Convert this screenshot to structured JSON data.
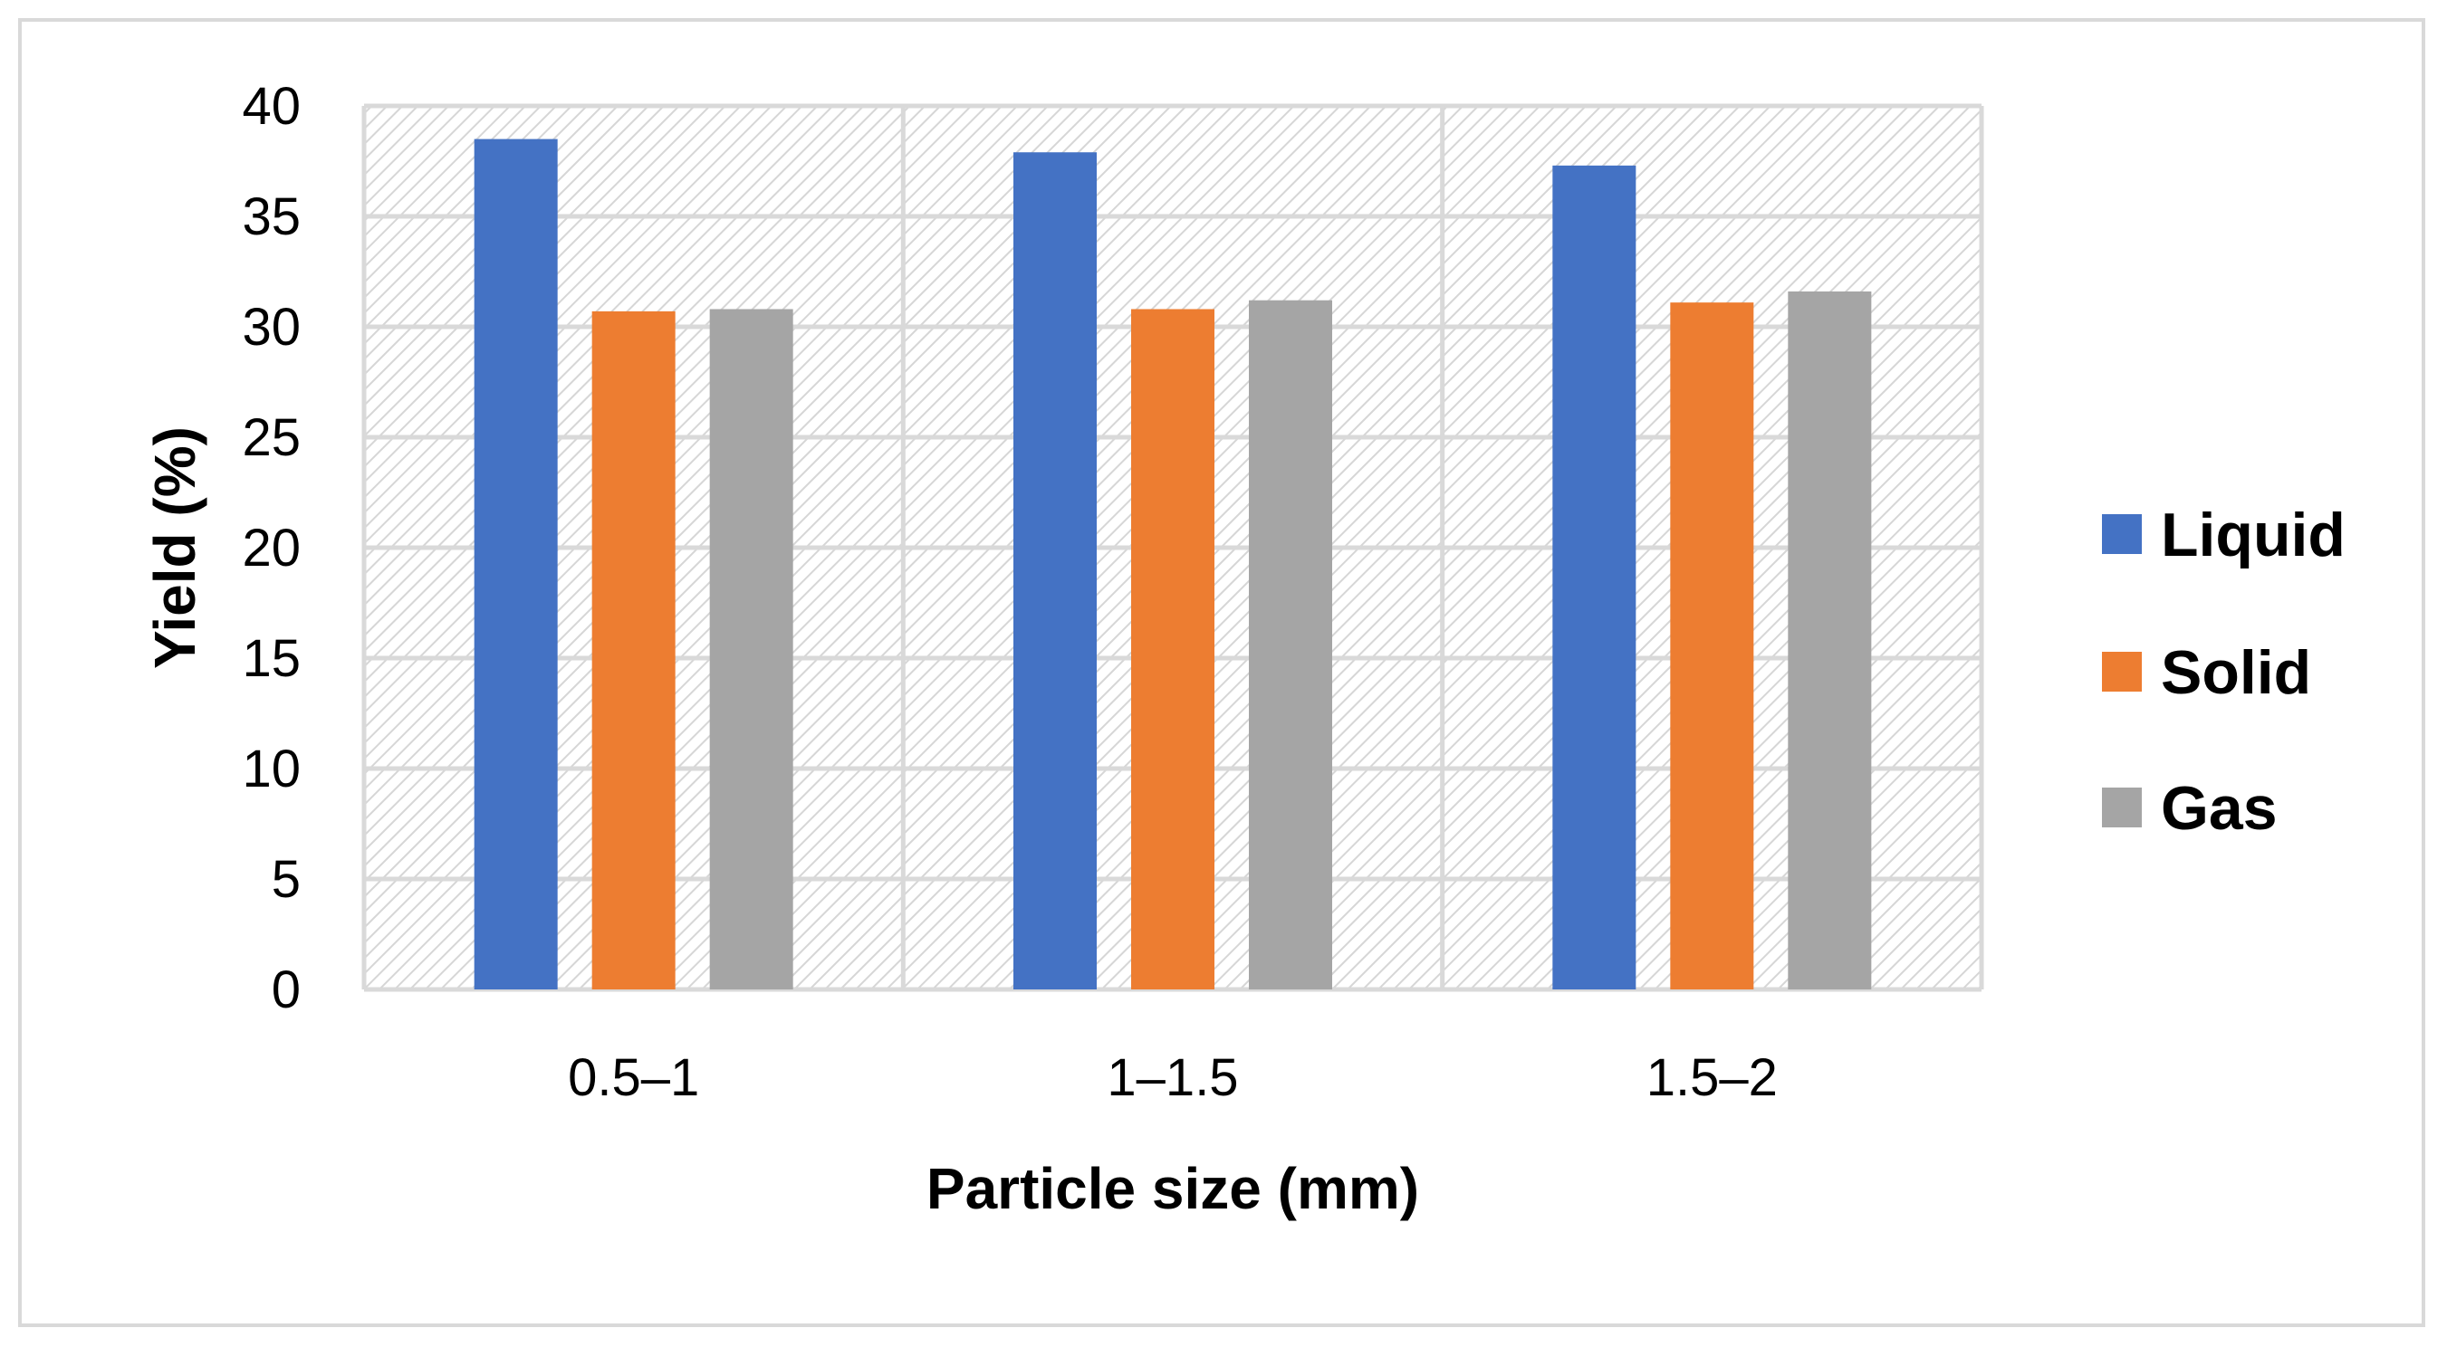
{
  "chart_data": {
    "type": "bar",
    "title": "",
    "xlabel": "Particle size (mm)",
    "ylabel": "Yield (%)",
    "categories": [
      "0.5–1",
      "1–1.5",
      "1.5–2"
    ],
    "series": [
      {
        "name": "Liquid",
        "values": [
          38.5,
          37.9,
          37.3
        ],
        "color": "#4472c4"
      },
      {
        "name": "Solid",
        "values": [
          30.7,
          30.8,
          31.1
        ],
        "color": "#ed7d31"
      },
      {
        "name": "Gas",
        "values": [
          30.8,
          31.2,
          31.6
        ],
        "color": "#a5a5a5"
      }
    ],
    "ylim": [
      0,
      40
    ],
    "yticks": [
      0,
      5,
      10,
      15,
      20,
      25,
      30,
      35,
      40
    ],
    "grid": true,
    "legend_position": "right"
  }
}
